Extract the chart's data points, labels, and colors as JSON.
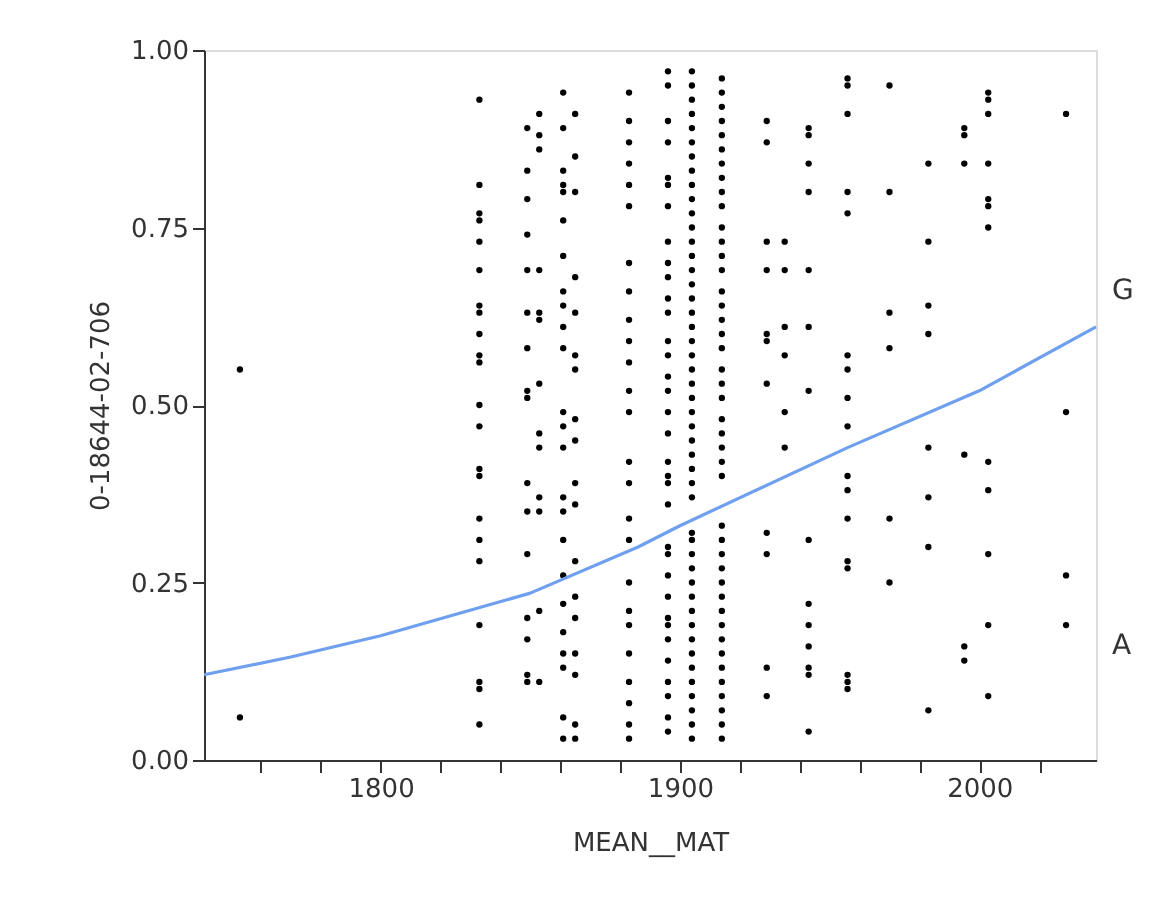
{
  "chart_data": {
    "type": "scatter",
    "xlabel": "MEAN__MAT",
    "ylabel": "0-18644-02-706",
    "xlim": [
      1741,
      2039
    ],
    "xticks": [
      {
        "value": 1760,
        "label": null
      },
      {
        "value": 1780,
        "label": null
      },
      1800,
      {
        "value": 1820,
        "label": null
      },
      {
        "value": 1840,
        "label": null
      },
      {
        "value": 1860,
        "label": null
      },
      {
        "value": 1880,
        "label": null
      },
      1900,
      {
        "value": 1920,
        "label": null
      },
      {
        "value": 1940,
        "label": null
      },
      {
        "value": 1960,
        "label": null
      },
      {
        "value": 1980,
        "label": null
      },
      2000,
      {
        "value": 2020,
        "label": null
      }
    ],
    "ylim": [
      0,
      1
    ],
    "yticks": [
      {
        "value": 0,
        "label": "0.00"
      },
      {
        "value": 0.25,
        "label": "0.25"
      },
      {
        "value": 0.5,
        "label": "0.50"
      },
      {
        "value": 0.75,
        "label": "0.75"
      },
      {
        "value": 1,
        "label": "1.00"
      }
    ],
    "annotations": [
      "G",
      "A"
    ],
    "grid": false,
    "marker": "circle",
    "series": [
      {
        "color": "#000000",
        "x": [
          1753,
          1753,
          1833,
          1833,
          1833,
          1833,
          1833,
          1833,
          1833,
          1833,
          1833,
          1833,
          1833,
          1833,
          1833,
          1833,
          1833,
          1833,
          1833,
          1833,
          1833,
          1833,
          1833,
          1833,
          1849,
          1849,
          1849,
          1849,
          1849,
          1849,
          1849,
          1849,
          1849,
          1849,
          1849,
          1849,
          1849,
          1849,
          1849,
          1849,
          1853,
          1853,
          1853,
          1853,
          1853,
          1853,
          1853,
          1853,
          1853,
          1853,
          1853,
          1853,
          1853,
          1861,
          1861,
          1861,
          1861,
          1861,
          1861,
          1861,
          1861,
          1861,
          1861,
          1861,
          1861,
          1861,
          1861,
          1861,
          1861,
          1861,
          1861,
          1861,
          1861,
          1861,
          1861,
          1861,
          1861,
          1865,
          1865,
          1865,
          1865,
          1865,
          1865,
          1865,
          1865,
          1865,
          1865,
          1865,
          1865,
          1865,
          1865,
          1865,
          1865,
          1865,
          1865,
          1883,
          1883,
          1883,
          1883,
          1883,
          1883,
          1883,
          1883,
          1883,
          1883,
          1883,
          1883,
          1883,
          1883,
          1883,
          1883,
          1883,
          1883,
          1883,
          1883,
          1883,
          1883,
          1883,
          1883,
          1883,
          1896,
          1896,
          1896,
          1896,
          1896,
          1896,
          1896,
          1896,
          1896,
          1896,
          1896,
          1896,
          1896,
          1896,
          1896,
          1896,
          1896,
          1896,
          1896,
          1896,
          1896,
          1896,
          1896,
          1896,
          1896,
          1896,
          1896,
          1896,
          1896,
          1896,
          1896,
          1896,
          1896,
          1896,
          1904,
          1904,
          1904,
          1904,
          1904,
          1904,
          1904,
          1904,
          1904,
          1904,
          1904,
          1904,
          1904,
          1904,
          1904,
          1904,
          1904,
          1904,
          1904,
          1904,
          1904,
          1904,
          1904,
          1904,
          1904,
          1904,
          1904,
          1904,
          1904,
          1904,
          1904,
          1904,
          1904,
          1904,
          1904,
          1904,
          1904,
          1904,
          1904,
          1904,
          1904,
          1904,
          1904,
          1904,
          1904,
          1904,
          1904,
          1914,
          1914,
          1914,
          1914,
          1914,
          1914,
          1914,
          1914,
          1914,
          1914,
          1914,
          1914,
          1914,
          1914,
          1914,
          1914,
          1914,
          1914,
          1914,
          1914,
          1914,
          1914,
          1914,
          1914,
          1914,
          1914,
          1914,
          1914,
          1914,
          1914,
          1914,
          1914,
          1914,
          1914,
          1914,
          1914,
          1914,
          1914,
          1914,
          1914,
          1914,
          1914,
          1914,
          1929,
          1929,
          1929,
          1929,
          1929,
          1929,
          1929,
          1929,
          1929,
          1929,
          1929,
          1935,
          1935,
          1935,
          1935,
          1935,
          1935,
          1943,
          1943,
          1943,
          1943,
          1943,
          1943,
          1943,
          1943,
          1943,
          1943,
          1943,
          1943,
          1943,
          1943,
          1956,
          1956,
          1956,
          1956,
          1956,
          1956,
          1956,
          1956,
          1956,
          1956,
          1956,
          1956,
          1956,
          1956,
          1956,
          1956,
          1956,
          1970,
          1970,
          1970,
          1970,
          1970,
          1970,
          1983,
          1983,
          1983,
          1983,
          1983,
          1983,
          1983,
          1983,
          1995,
          1995,
          1995,
          1995,
          1995,
          1995,
          2003,
          2003,
          2003,
          2003,
          2003,
          2003,
          2003,
          2003,
          2003,
          2003,
          2003,
          2003,
          2029,
          2029,
          2029,
          2029
        ],
        "values": [
          0.55,
          0.06,
          0.93,
          0.81,
          0.77,
          0.76,
          0.73,
          0.69,
          0.64,
          0.63,
          0.6,
          0.57,
          0.56,
          0.5,
          0.47,
          0.41,
          0.4,
          0.34,
          0.31,
          0.28,
          0.19,
          0.11,
          0.1,
          0.05,
          0.89,
          0.83,
          0.79,
          0.74,
          0.69,
          0.63,
          0.58,
          0.52,
          0.51,
          0.39,
          0.35,
          0.29,
          0.2,
          0.17,
          0.12,
          0.11,
          0.91,
          0.88,
          0.86,
          0.69,
          0.63,
          0.62,
          0.53,
          0.46,
          0.44,
          0.37,
          0.35,
          0.21,
          0.11,
          0.94,
          0.89,
          0.83,
          0.81,
          0.8,
          0.76,
          0.71,
          0.66,
          0.64,
          0.61,
          0.58,
          0.49,
          0.47,
          0.44,
          0.37,
          0.35,
          0.31,
          0.26,
          0.22,
          0.18,
          0.15,
          0.13,
          0.06,
          0.03,
          0.91,
          0.85,
          0.8,
          0.68,
          0.63,
          0.57,
          0.55,
          0.48,
          0.45,
          0.39,
          0.36,
          0.28,
          0.23,
          0.2,
          0.15,
          0.12,
          0.05,
          0.03,
          0.94,
          0.9,
          0.87,
          0.84,
          0.81,
          0.78,
          0.7,
          0.66,
          0.62,
          0.59,
          0.56,
          0.52,
          0.49,
          0.42,
          0.39,
          0.34,
          0.31,
          0.25,
          0.21,
          0.19,
          0.15,
          0.11,
          0.08,
          0.05,
          0.03,
          0.97,
          0.95,
          0.9,
          0.87,
          0.82,
          0.81,
          0.78,
          0.73,
          0.7,
          0.68,
          0.65,
          0.63,
          0.59,
          0.57,
          0.54,
          0.52,
          0.49,
          0.46,
          0.42,
          0.4,
          0.39,
          0.36,
          0.3,
          0.29,
          0.26,
          0.23,
          0.2,
          0.19,
          0.17,
          0.14,
          0.11,
          0.09,
          0.06,
          0.04,
          0.97,
          0.95,
          0.93,
          0.91,
          0.89,
          0.87,
          0.85,
          0.83,
          0.81,
          0.79,
          0.77,
          0.75,
          0.73,
          0.71,
          0.69,
          0.67,
          0.65,
          0.63,
          0.61,
          0.59,
          0.57,
          0.55,
          0.53,
          0.51,
          0.49,
          0.47,
          0.45,
          0.43,
          0.41,
          0.39,
          0.37,
          0.32,
          0.31,
          0.29,
          0.27,
          0.25,
          0.23,
          0.21,
          0.19,
          0.17,
          0.15,
          0.13,
          0.11,
          0.09,
          0.07,
          0.05,
          0.03,
          0.96,
          0.94,
          0.92,
          0.9,
          0.88,
          0.86,
          0.84,
          0.82,
          0.8,
          0.78,
          0.75,
          0.73,
          0.71,
          0.69,
          0.66,
          0.64,
          0.62,
          0.6,
          0.58,
          0.55,
          0.53,
          0.51,
          0.48,
          0.46,
          0.44,
          0.42,
          0.4,
          0.33,
          0.31,
          0.29,
          0.27,
          0.25,
          0.23,
          0.21,
          0.19,
          0.17,
          0.15,
          0.13,
          0.11,
          0.09,
          0.07,
          0.05,
          0.03,
          0.9,
          0.87,
          0.73,
          0.69,
          0.6,
          0.59,
          0.53,
          0.32,
          0.29,
          0.13,
          0.09,
          0.73,
          0.69,
          0.61,
          0.57,
          0.49,
          0.44,
          0.89,
          0.88,
          0.84,
          0.8,
          0.69,
          0.61,
          0.52,
          0.31,
          0.22,
          0.19,
          0.16,
          0.13,
          0.12,
          0.04,
          0.96,
          0.95,
          0.91,
          0.8,
          0.77,
          0.57,
          0.55,
          0.51,
          0.47,
          0.4,
          0.38,
          0.34,
          0.28,
          0.27,
          0.12,
          0.11,
          0.1,
          0.95,
          0.8,
          0.63,
          0.58,
          0.34,
          0.25,
          0.84,
          0.73,
          0.64,
          0.6,
          0.44,
          0.37,
          0.3,
          0.07,
          0.89,
          0.88,
          0.84,
          0.43,
          0.16,
          0.14,
          0.94,
          0.93,
          0.91,
          0.84,
          0.79,
          0.78,
          0.75,
          0.42,
          0.38,
          0.29,
          0.19,
          0.09,
          0.91,
          0.49,
          0.26,
          0.19
        ]
      },
      {
        "type": "line",
        "color": "#6f9fef",
        "marker": "none",
        "line_style": "solid",
        "x": [
          1741,
          1770,
          1800,
          1850,
          1886,
          1900,
          1956,
          2000,
          2039
        ],
        "values": [
          0.12,
          0.145,
          0.175,
          0.235,
          0.3,
          0.33,
          0.44,
          0.52,
          0.61
        ]
      }
    ]
  }
}
